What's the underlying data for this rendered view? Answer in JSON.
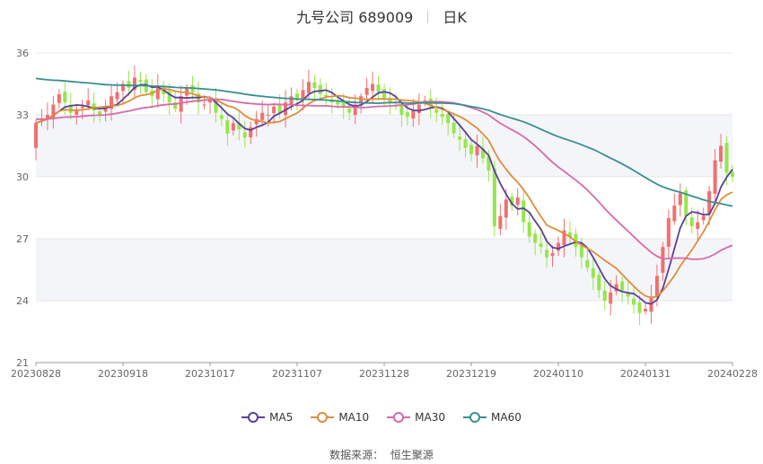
{
  "header": {
    "stock": "九号公司 689009",
    "period": "日K"
  },
  "source": "数据来源：  恒生聚源",
  "colors": {
    "up": "#f07070",
    "down": "#96e64b",
    "grid": "#e8e8e8",
    "band": "#f4f5f9"
  },
  "chart_data": {
    "type": "candlestick",
    "ylim": [
      21,
      36
    ],
    "yticks": [
      21,
      24,
      27,
      30,
      33,
      36
    ],
    "xticks": [
      "20230828",
      "20230918",
      "20231017",
      "20231107",
      "20231128",
      "20231219",
      "20240110",
      "20240131",
      "20240228"
    ],
    "xtick_index": [
      0,
      15,
      30,
      45,
      60,
      75,
      90,
      105,
      120
    ],
    "n": 121,
    "closes": [
      32.6,
      32.8,
      33.0,
      33.5,
      34.0,
      33.6,
      33.1,
      33.2,
      33.4,
      33.7,
      33.2,
      33.0,
      33.3,
      33.9,
      34.1,
      34.5,
      34.3,
      34.8,
      34.6,
      34.1,
      33.9,
      34.4,
      34.0,
      33.6,
      33.3,
      33.9,
      34.3,
      34.1,
      33.6,
      33.5,
      33.7,
      33.1,
      32.8,
      32.1,
      32.6,
      32.3,
      31.9,
      32.4,
      32.8,
      33.1,
      33.0,
      33.4,
      33.1,
      33.6,
      33.9,
      33.7,
      34.2,
      34.6,
      34.3,
      34.0,
      33.9,
      33.6,
      33.5,
      33.4,
      33.1,
      33.5,
      33.9,
      34.3,
      34.5,
      34.1,
      33.8,
      33.6,
      33.4,
      33.0,
      32.9,
      33.2,
      33.5,
      33.7,
      33.4,
      33.1,
      32.9,
      32.6,
      32.1,
      31.8,
      31.4,
      31.1,
      31.5,
      30.9,
      30.3,
      27.6,
      28.1,
      28.9,
      28.6,
      29.0,
      27.8,
      27.1,
      26.8,
      26.6,
      26.1,
      26.3,
      26.8,
      27.4,
      27.1,
      26.6,
      26.1,
      25.6,
      25.1,
      24.5,
      24.0,
      24.4,
      24.8,
      24.5,
      24.2,
      23.8,
      23.4,
      23.6,
      24.2,
      25.2,
      26.6,
      28.0,
      28.6,
      29.2,
      28.1,
      27.6,
      27.8,
      28.1,
      29.3,
      30.8,
      31.5,
      30.2,
      30.0
    ],
    "ma_series": [
      {
        "name": "MA5",
        "color": "#5b3f9a",
        "period": 5
      },
      {
        "name": "MA10",
        "color": "#e08c3a",
        "period": 10
      },
      {
        "name": "MA30",
        "color": "#d76aa8",
        "period": 30
      },
      {
        "name": "MA60",
        "color": "#3a8f8f",
        "period": 60
      }
    ]
  }
}
